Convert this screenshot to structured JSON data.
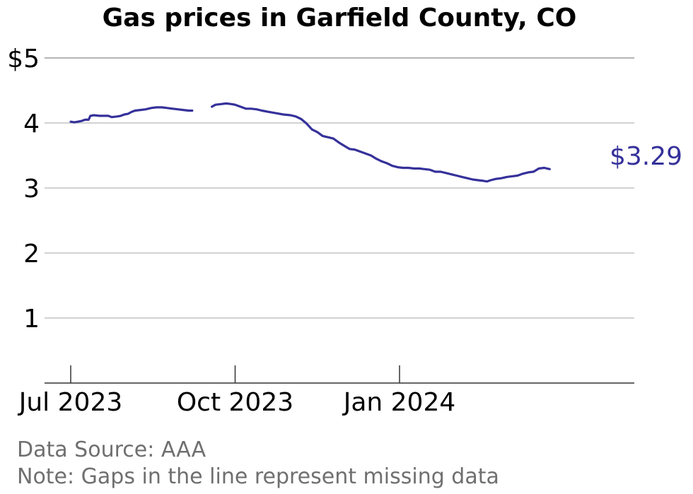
{
  "chart_data": {
    "type": "line",
    "title": "Gas prices in Garfield County, CO",
    "xlabel": "",
    "ylabel": "",
    "x_ticks": [
      "Jul 2023",
      "Oct 2023",
      "Jan 2024"
    ],
    "y_ticks": [
      "1",
      "2",
      "3",
      "4",
      "$5"
    ],
    "ylim": [
      0,
      5
    ],
    "grid": true,
    "end_label": "$3.29",
    "color": "#35319a",
    "segments": [
      [
        [
          "2023-07-01",
          4.02
        ],
        [
          "2023-07-03",
          4.01
        ],
        [
          "2023-07-05",
          4.02
        ],
        [
          "2023-07-07",
          4.03
        ],
        [
          "2023-07-09",
          4.05
        ],
        [
          "2023-07-11",
          4.05
        ],
        [
          "2023-07-12",
          4.11
        ],
        [
          "2023-07-14",
          4.12
        ],
        [
          "2023-07-17",
          4.11
        ],
        [
          "2023-07-20",
          4.11
        ],
        [
          "2023-07-22",
          4.11
        ],
        [
          "2023-07-24",
          4.09
        ],
        [
          "2023-07-27",
          4.1
        ],
        [
          "2023-07-29",
          4.11
        ],
        [
          "2023-07-31",
          4.13
        ],
        [
          "2023-08-02",
          4.14
        ],
        [
          "2023-08-04",
          4.17
        ],
        [
          "2023-08-06",
          4.19
        ],
        [
          "2023-08-09",
          4.2
        ],
        [
          "2023-08-12",
          4.21
        ],
        [
          "2023-08-15",
          4.23
        ],
        [
          "2023-08-18",
          4.24
        ],
        [
          "2023-08-21",
          4.24
        ],
        [
          "2023-08-24",
          4.23
        ],
        [
          "2023-08-27",
          4.22
        ],
        [
          "2023-08-30",
          4.21
        ],
        [
          "2023-09-02",
          4.2
        ],
        [
          "2023-09-05",
          4.19
        ],
        [
          "2023-09-07",
          4.19
        ]
      ],
      [
        [
          "2023-09-18",
          4.25
        ],
        [
          "2023-09-20",
          4.28
        ],
        [
          "2023-09-23",
          4.29
        ],
        [
          "2023-09-26",
          4.3
        ],
        [
          "2023-09-29",
          4.29
        ],
        [
          "2023-10-01",
          4.28
        ],
        [
          "2023-10-04",
          4.25
        ],
        [
          "2023-10-07",
          4.22
        ],
        [
          "2023-10-10",
          4.22
        ],
        [
          "2023-10-13",
          4.21
        ],
        [
          "2023-10-16",
          4.19
        ],
        [
          "2023-10-20",
          4.17
        ],
        [
          "2023-10-24",
          4.15
        ],
        [
          "2023-10-28",
          4.13
        ],
        [
          "2023-11-01",
          4.12
        ],
        [
          "2023-11-04",
          4.1
        ],
        [
          "2023-11-07",
          4.06
        ],
        [
          "2023-11-10",
          3.99
        ],
        [
          "2023-11-13",
          3.9
        ],
        [
          "2023-11-16",
          3.86
        ],
        [
          "2023-11-19",
          3.8
        ],
        [
          "2023-11-22",
          3.78
        ],
        [
          "2023-11-25",
          3.76
        ],
        [
          "2023-11-28",
          3.7
        ],
        [
          "2023-12-01",
          3.65
        ],
        [
          "2023-12-04",
          3.6
        ],
        [
          "2023-12-07",
          3.59
        ],
        [
          "2023-12-10",
          3.56
        ],
        [
          "2023-12-13",
          3.53
        ],
        [
          "2023-12-16",
          3.5
        ],
        [
          "2023-12-19",
          3.45
        ],
        [
          "2023-12-22",
          3.41
        ],
        [
          "2023-12-25",
          3.38
        ],
        [
          "2023-12-28",
          3.34
        ],
        [
          "2023-12-31",
          3.32
        ],
        [
          "2024-01-03",
          3.31
        ],
        [
          "2024-01-06",
          3.31
        ],
        [
          "2024-01-09",
          3.3
        ],
        [
          "2024-01-12",
          3.3
        ],
        [
          "2024-01-15",
          3.29
        ],
        [
          "2024-01-18",
          3.28
        ],
        [
          "2024-01-21",
          3.25
        ],
        [
          "2024-01-24",
          3.25
        ],
        [
          "2024-01-27",
          3.23
        ],
        [
          "2024-01-30",
          3.21
        ],
        [
          "2024-02-02",
          3.19
        ],
        [
          "2024-02-05",
          3.17
        ],
        [
          "2024-02-08",
          3.15
        ],
        [
          "2024-02-11",
          3.13
        ],
        [
          "2024-02-14",
          3.12
        ],
        [
          "2024-02-17",
          3.11
        ],
        [
          "2024-02-19",
          3.1
        ],
        [
          "2024-02-21",
          3.12
        ],
        [
          "2024-02-24",
          3.14
        ],
        [
          "2024-02-27",
          3.15
        ],
        [
          "2024-03-01",
          3.17
        ],
        [
          "2024-03-04",
          3.18
        ],
        [
          "2024-03-07",
          3.19
        ],
        [
          "2024-03-10",
          3.22
        ],
        [
          "2024-03-13",
          3.24
        ],
        [
          "2024-03-16",
          3.25
        ],
        [
          "2024-03-19",
          3.3
        ],
        [
          "2024-03-22",
          3.31
        ],
        [
          "2024-03-25",
          3.29
        ]
      ]
    ],
    "footnotes": [
      "Data Source: AAA",
      "Note: Gaps in the line represent missing data"
    ]
  }
}
